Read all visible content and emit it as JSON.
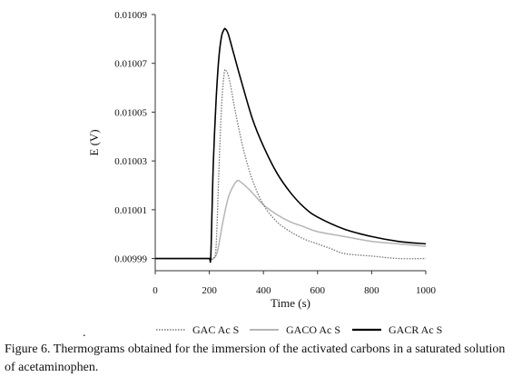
{
  "chart_data": {
    "type": "line",
    "xlabel": "Time (s)",
    "ylabel": "E (V)",
    "xlim": [
      0,
      1000
    ],
    "ylim": [
      0.009985,
      0.01009
    ],
    "x_ticks": [
      "0",
      "200",
      "400",
      "600",
      "800",
      "1000"
    ],
    "y_ticks": [
      "0.00999",
      "0.01001",
      "0.01003",
      "0.01005",
      "0.01007",
      "0.01009"
    ],
    "grid": false,
    "legend_position": "bottom",
    "series": [
      {
        "name": "GAC Ac S",
        "style": "dotted",
        "color": "#777777",
        "x": [
          0,
          180,
          200,
          215,
          225,
          235,
          245,
          255,
          262,
          270,
          280,
          300,
          330,
          360,
          400,
          450,
          500,
          550,
          600,
          650,
          700,
          800,
          900,
          1000
        ],
        "y": [
          0.00999,
          0.00999,
          0.00999,
          0.00999,
          0.009995,
          0.010025,
          0.010052,
          0.010066,
          0.010067,
          0.010065,
          0.01006,
          0.010048,
          0.010033,
          0.010022,
          0.010012,
          0.010005,
          0.010001,
          0.009998,
          0.009996,
          0.009994,
          0.009992,
          0.009991,
          0.00999,
          0.00999
        ]
      },
      {
        "name": "GACO Ac S",
        "style": "solid",
        "color": "#b5b5b5",
        "x": [
          0,
          180,
          200,
          215,
          230,
          250,
          270,
          290,
          305,
          320,
          350,
          400,
          450,
          500,
          550,
          600,
          700,
          800,
          900,
          1000
        ],
        "y": [
          0.00999,
          0.00999,
          0.00999,
          0.00999,
          0.009993,
          0.010005,
          0.010015,
          0.01002,
          0.010022,
          0.010021,
          0.010018,
          0.010012,
          0.010008,
          0.010005,
          0.010003,
          0.010001,
          0.009999,
          0.009997,
          0.009996,
          0.009995
        ]
      },
      {
        "name": "GACR Ac S",
        "style": "solid",
        "color": "#000000",
        "x": [
          0,
          180,
          200,
          205,
          210,
          215,
          225,
          235,
          245,
          255,
          260,
          270,
          290,
          320,
          360,
          400,
          450,
          500,
          550,
          600,
          700,
          800,
          900,
          1000
        ],
        "y": [
          0.00999,
          0.00999,
          0.00999,
          0.00999,
          0.01001,
          0.01003,
          0.010055,
          0.010072,
          0.010081,
          0.010084,
          0.010084,
          0.010082,
          0.010074,
          0.010062,
          0.010047,
          0.010036,
          0.010025,
          0.010017,
          0.010011,
          0.010007,
          0.010002,
          0.009999,
          0.009997,
          0.009996
        ]
      }
    ]
  },
  "caption": "Figure 6. Thermograms obtained for the immersion of the activated carbons in a saturated solution of acetaminophen.",
  "stray_mark": "."
}
